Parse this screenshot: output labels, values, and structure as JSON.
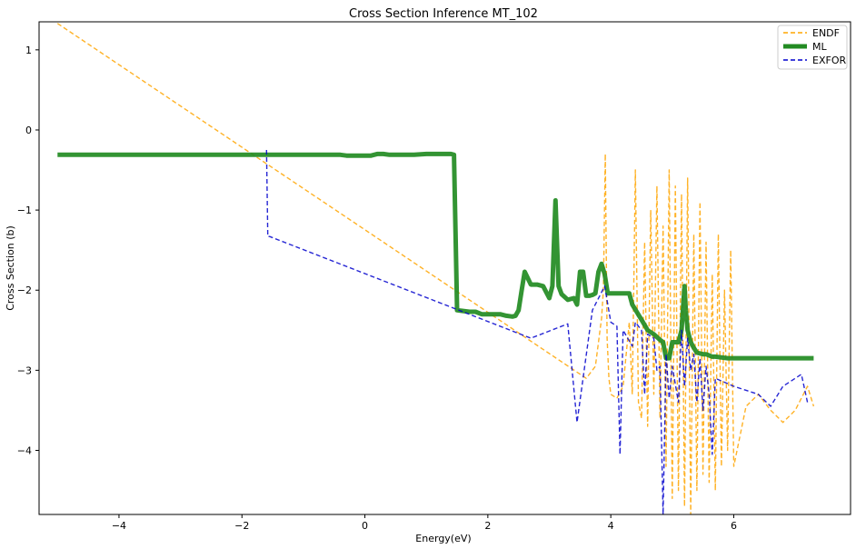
{
  "chart_data": {
    "type": "line",
    "title": "Cross Section Inference MT_102",
    "xlabel": "Energy(eV)",
    "ylabel": "Cross Section (b)",
    "xlim": [
      -5.3,
      7.9
    ],
    "ylim": [
      -4.8,
      1.35
    ],
    "xticks": [
      -4,
      -2,
      0,
      2,
      4,
      6
    ],
    "yticks": [
      -4,
      -3,
      -2,
      -1,
      0,
      1
    ],
    "grid": false,
    "legend_position": "top-right",
    "series": [
      {
        "name": "ENDF",
        "color": "#FFA500",
        "style": "dashed",
        "x": [
          -5.0,
          3.6,
          3.75,
          3.85,
          3.88,
          3.91,
          3.94,
          3.97,
          4.0,
          4.1,
          4.2,
          4.3,
          4.35,
          4.4,
          4.45,
          4.5,
          4.55,
          4.6,
          4.65,
          4.7,
          4.75,
          4.8,
          4.85,
          4.9,
          4.95,
          5.0,
          5.05,
          5.1,
          5.15,
          5.2,
          5.25,
          5.3,
          5.35,
          5.4,
          5.45,
          5.5,
          5.55,
          5.6,
          5.65,
          5.7,
          5.75,
          5.8,
          5.85,
          5.9,
          5.95,
          6.0,
          6.2,
          6.4,
          6.6,
          6.8,
          7.0,
          7.2,
          7.3
        ],
        "y": [
          1.33,
          -3.1,
          -2.95,
          -2.35,
          -2.0,
          -0.3,
          -2.6,
          -3.1,
          -3.3,
          -3.35,
          -3.2,
          -2.4,
          -3.3,
          -0.5,
          -3.4,
          -3.6,
          -1.4,
          -3.7,
          -1.0,
          -3.3,
          -0.7,
          -3.6,
          -1.2,
          -4.2,
          -0.5,
          -4.6,
          -0.7,
          -4.5,
          -0.8,
          -4.7,
          -0.6,
          -4.8,
          -1.3,
          -4.5,
          -0.9,
          -4.3,
          -1.4,
          -4.4,
          -1.8,
          -4.5,
          -1.3,
          -4.2,
          -2.0,
          -4.0,
          -1.5,
          -4.2,
          -3.45,
          -3.3,
          -3.5,
          -3.65,
          -3.5,
          -3.2,
          -3.45
        ]
      },
      {
        "name": "ML",
        "color": "#228B22",
        "style": "solid",
        "x": [
          -5.0,
          -3.0,
          -1.0,
          -0.4,
          -0.3,
          0.0,
          0.1,
          0.2,
          0.3,
          0.4,
          0.6,
          0.8,
          1.0,
          1.2,
          1.4,
          1.45,
          1.5,
          1.7,
          1.8,
          1.9,
          2.2,
          2.3,
          2.4,
          2.45,
          2.5,
          2.55,
          2.6,
          2.65,
          2.7,
          2.8,
          2.9,
          3.0,
          3.05,
          3.1,
          3.15,
          3.2,
          3.3,
          3.4,
          3.45,
          3.5,
          3.55,
          3.6,
          3.65,
          3.7,
          3.75,
          3.8,
          3.85,
          3.9,
          3.95,
          4.0,
          4.3,
          4.35,
          4.5,
          4.6,
          4.7,
          4.8,
          4.85,
          4.9,
          4.95,
          5.0,
          5.05,
          5.1,
          5.15,
          5.2,
          5.22,
          5.25,
          5.3,
          5.35,
          5.4,
          5.5,
          5.55,
          5.65,
          5.7,
          5.9,
          6.0,
          7.3
        ],
        "y": [
          -0.31,
          -0.31,
          -0.31,
          -0.31,
          -0.32,
          -0.32,
          -0.32,
          -0.3,
          -0.3,
          -0.31,
          -0.31,
          -0.31,
          -0.3,
          -0.3,
          -0.3,
          -0.31,
          -2.25,
          -2.27,
          -2.27,
          -2.3,
          -2.3,
          -2.32,
          -2.33,
          -2.32,
          -2.25,
          -2.0,
          -1.77,
          -1.85,
          -1.93,
          -1.93,
          -1.95,
          -2.1,
          -1.95,
          -0.88,
          -1.95,
          -2.05,
          -2.12,
          -2.1,
          -2.18,
          -1.77,
          -1.77,
          -2.07,
          -2.07,
          -2.06,
          -2.04,
          -1.77,
          -1.67,
          -1.8,
          -2.04,
          -2.04,
          -2.04,
          -2.18,
          -2.37,
          -2.5,
          -2.55,
          -2.62,
          -2.65,
          -2.85,
          -2.85,
          -2.65,
          -2.65,
          -2.65,
          -2.5,
          -1.95,
          -2.25,
          -2.5,
          -2.65,
          -2.72,
          -2.78,
          -2.8,
          -2.8,
          -2.83,
          -2.83,
          -2.85,
          -2.85,
          -2.85
        ]
      },
      {
        "name": "EXFOR",
        "color": "#0000CD",
        "style": "dashed",
        "x": [
          -1.6,
          -1.58,
          -1.55,
          2.7,
          3.3,
          3.45,
          3.7,
          3.9,
          4.0,
          4.1,
          4.15,
          4.2,
          4.35,
          4.4,
          4.5,
          4.55,
          4.6,
          4.7,
          4.75,
          4.8,
          4.85,
          4.9,
          4.95,
          5.0,
          5.1,
          5.15,
          5.2,
          5.25,
          5.3,
          5.35,
          5.4,
          5.45,
          5.5,
          5.55,
          5.6,
          5.65,
          5.7,
          6.0,
          6.4,
          6.6,
          6.8,
          7.1,
          7.2
        ],
        "y": [
          -0.25,
          -1.33,
          -1.33,
          -2.6,
          -2.42,
          -3.65,
          -2.25,
          -1.95,
          -2.4,
          -2.45,
          -4.05,
          -2.5,
          -2.7,
          -2.4,
          -2.5,
          -3.3,
          -2.55,
          -2.6,
          -3.0,
          -2.95,
          -4.8,
          -2.8,
          -3.35,
          -2.95,
          -3.4,
          -2.5,
          -3.2,
          -2.6,
          -3.0,
          -2.8,
          -3.4,
          -2.85,
          -3.5,
          -2.95,
          -3.3,
          -4.05,
          -3.1,
          -3.2,
          -3.3,
          -3.45,
          -3.2,
          -3.05,
          -3.4
        ]
      }
    ]
  }
}
